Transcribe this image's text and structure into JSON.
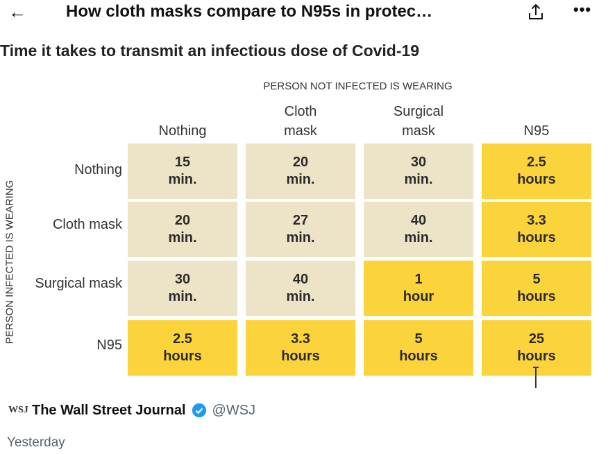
{
  "header": {
    "back_icon": "arrow-left-icon",
    "title": "How cloth masks compare to N95s in protec…",
    "share_icon": "share-icon",
    "more_icon": "more-icon"
  },
  "figure": {
    "title": "Time it takes to transmit an infectious dose of Covid-19",
    "columns_caption": "PERSON NOT INFECTED IS WEARING",
    "rows_caption": "PERSON INFECTED IS WEARING",
    "columns": [
      {
        "l1": "",
        "l2": "Nothing"
      },
      {
        "l1": "Cloth",
        "l2": "mask"
      },
      {
        "l1": "Surgical",
        "l2": "mask"
      },
      {
        "l1": "",
        "l2": "N95"
      }
    ],
    "rows": [
      {
        "label": "Nothing",
        "cells": [
          {
            "value": "15",
            "unit": "min.",
            "tone": "tan"
          },
          {
            "value": "20",
            "unit": "min.",
            "tone": "tan"
          },
          {
            "value": "30",
            "unit": "min.",
            "tone": "tan"
          },
          {
            "value": "2.5",
            "unit": "hours",
            "tone": "yellow"
          }
        ]
      },
      {
        "label": "Cloth mask",
        "cells": [
          {
            "value": "20",
            "unit": "min.",
            "tone": "tan"
          },
          {
            "value": "27",
            "unit": "min.",
            "tone": "tan"
          },
          {
            "value": "40",
            "unit": "min.",
            "tone": "tan"
          },
          {
            "value": "3.3",
            "unit": "hours",
            "tone": "yellow"
          }
        ]
      },
      {
        "label": "Surgical mask",
        "cells": [
          {
            "value": "30",
            "unit": "min.",
            "tone": "tan"
          },
          {
            "value": "40",
            "unit": "min.",
            "tone": "tan"
          },
          {
            "value": "1",
            "unit": "hour",
            "tone": "yellow"
          },
          {
            "value": "5",
            "unit": "hours",
            "tone": "yellow"
          }
        ]
      },
      {
        "label": "N95",
        "cells": [
          {
            "value": "2.5",
            "unit": "hours",
            "tone": "yellow"
          },
          {
            "value": "3.3",
            "unit": "hours",
            "tone": "yellow"
          },
          {
            "value": "5",
            "unit": "hours",
            "tone": "yellow"
          },
          {
            "value": "25",
            "unit": "hours",
            "tone": "yellow"
          }
        ]
      }
    ],
    "colors": {
      "tan": "#ede3c7",
      "yellow": "#fbd33b"
    }
  },
  "source": {
    "logo_text": "WSJ",
    "name": "The Wall Street Journal",
    "handle": "@WSJ",
    "verified_icon": "verified-badge-icon"
  },
  "timestamp": "Yesterday"
}
